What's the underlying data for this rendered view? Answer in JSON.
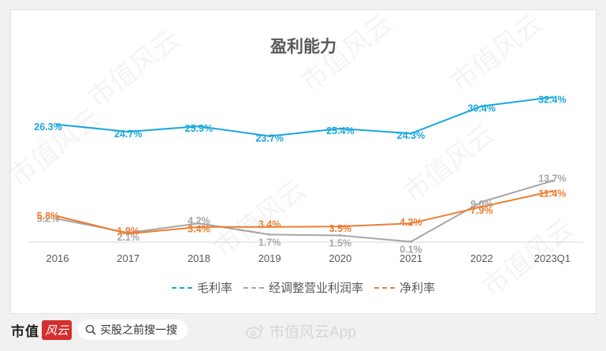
{
  "chart_data": {
    "type": "line",
    "title": "盈利能力",
    "categories": [
      "2016",
      "2017",
      "2018",
      "2019",
      "2020",
      "2021",
      "2022",
      "2023Q1"
    ],
    "series": [
      {
        "name": "毛利率",
        "color": "#1aa6de",
        "values": [
          26.3,
          24.7,
          25.9,
          23.7,
          25.4,
          24.3,
          30.4,
          32.4
        ],
        "labels": [
          "26.3%",
          "24.7%",
          "25.9%",
          "23.7%",
          "25.4%",
          "24.3%",
          "30.4%",
          "32.4%"
        ]
      },
      {
        "name": "经调整营业利润率",
        "color": "#a6a6a6",
        "values": [
          5.2,
          2.1,
          4.2,
          1.7,
          1.5,
          0.1,
          9.0,
          13.7
        ],
        "labels": [
          "5.2%",
          "2.1%",
          "4.2%",
          "1.7%",
          "1.5%",
          "0.1%",
          "9.0%",
          "13.7%"
        ]
      },
      {
        "name": "净利率",
        "color": "#ed7d31",
        "values": [
          5.8,
          1.9,
          3.4,
          3.4,
          3.5,
          4.2,
          7.9,
          11.4
        ],
        "labels": [
          "5.8%",
          "1.9%",
          "3.4%",
          "3.4%",
          "3.5%",
          "4.2%",
          "7.9%",
          "11.4%"
        ]
      }
    ],
    "grid": false,
    "legend_position": "bottom"
  },
  "footer": {
    "brand": "市值",
    "brand_logo": "风云",
    "search_text": "买股之前搜一搜",
    "watermark": "市值风云App"
  },
  "watermarks": [
    "市值风云",
    "市值风云",
    "市值风云",
    "市值风云",
    "市值风云",
    "市值风云",
    "市值风云"
  ]
}
